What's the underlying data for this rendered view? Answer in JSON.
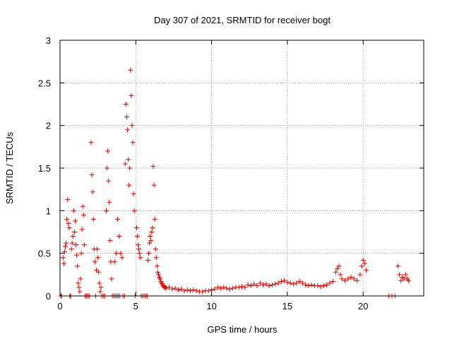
{
  "chart_data": {
    "type": "scatter",
    "title": "Day 307 of 2021, SRMTID for receiver bogt",
    "xlabel": "GPS time / hours",
    "ylabel": "SRMTID / TECUs",
    "xlim": [
      0,
      24
    ],
    "ylim": [
      0,
      3
    ],
    "x_ticks": [
      0,
      5,
      10,
      15,
      20
    ],
    "x_tick_labels": [
      "0",
      "5",
      "10",
      "15",
      "20"
    ],
    "y_ticks": [
      0,
      0.5,
      1,
      1.5,
      2,
      2.5,
      3
    ],
    "y_tick_labels": [
      "0",
      "0.5",
      "1",
      "1.5",
      "2",
      "2.5",
      "3"
    ],
    "grid": true,
    "legend": "none",
    "marker": "+",
    "colors": {
      "series": "#e00000",
      "axis": "#000000",
      "grid": "#a0a0a0"
    },
    "series": [
      {
        "name": "SRMTID",
        "points": [
          [
            0.05,
            0.0
          ],
          [
            0.1,
            0.0
          ],
          [
            0.2,
            0.45
          ],
          [
            0.25,
            0.38
          ],
          [
            0.3,
            0.52
          ],
          [
            0.35,
            0.58
          ],
          [
            0.4,
            0.62
          ],
          [
            0.45,
            0.9
          ],
          [
            0.5,
            1.13
          ],
          [
            0.55,
            0.85
          ],
          [
            0.6,
            0.8
          ],
          [
            0.65,
            0.0
          ],
          [
            0.7,
            0.0
          ],
          [
            0.75,
            0.55
          ],
          [
            0.8,
            0.62
          ],
          [
            0.85,
            0.7
          ],
          [
            0.9,
            1.0
          ],
          [
            0.95,
            0.75
          ],
          [
            1.0,
            0.88
          ],
          [
            1.05,
            0.6
          ],
          [
            1.1,
            0.48
          ],
          [
            1.15,
            0.35
          ],
          [
            1.2,
            0.15
          ],
          [
            1.25,
            0.1
          ],
          [
            1.3,
            0.05
          ],
          [
            1.35,
            0.2
          ],
          [
            1.4,
            0.5
          ],
          [
            1.45,
            0.78
          ],
          [
            1.5,
            1.05
          ],
          [
            1.55,
            0.95
          ],
          [
            1.6,
            0.6
          ],
          [
            1.65,
            0.0
          ],
          [
            1.75,
            0.0
          ],
          [
            1.85,
            0.0
          ],
          [
            1.95,
            0.0
          ],
          [
            2.05,
            1.8
          ],
          [
            2.1,
            1.42
          ],
          [
            2.15,
            1.22
          ],
          [
            2.2,
            0.9
          ],
          [
            2.25,
            0.55
          ],
          [
            2.3,
            0.4
          ],
          [
            2.35,
            0.0
          ],
          [
            2.4,
            0.3
          ],
          [
            2.45,
            0.55
          ],
          [
            2.5,
            0.45
          ],
          [
            2.55,
            0.28
          ],
          [
            2.6,
            0.15
          ],
          [
            2.65,
            0.05
          ],
          [
            2.7,
            0.1
          ],
          [
            2.75,
            0.0
          ],
          [
            2.85,
            0.0
          ],
          [
            2.95,
            0.0
          ],
          [
            3.05,
            1.0
          ],
          [
            3.1,
            1.5
          ],
          [
            3.15,
            1.7
          ],
          [
            3.2,
            1.35
          ],
          [
            3.25,
            1.1
          ],
          [
            3.3,
            0.65
          ],
          [
            3.35,
            0.4
          ],
          [
            3.4,
            0.2
          ],
          [
            3.45,
            0.0
          ],
          [
            3.55,
            0.0
          ],
          [
            3.65,
            0.0
          ],
          [
            3.75,
            0.0
          ],
          [
            3.85,
            0.0
          ],
          [
            3.95,
            0.0
          ],
          [
            3.6,
            0.4
          ],
          [
            3.7,
            0.5
          ],
          [
            3.8,
            0.9
          ],
          [
            3.9,
            0.7
          ],
          [
            4.0,
            0.5
          ],
          [
            4.1,
            0.45
          ],
          [
            4.15,
            0.0
          ],
          [
            4.25,
            0.0
          ],
          [
            4.3,
            1.55
          ],
          [
            4.35,
            2.25
          ],
          [
            4.4,
            2.1
          ],
          [
            4.45,
            1.95
          ],
          [
            4.5,
            1.6
          ],
          [
            4.55,
            1.3
          ],
          [
            4.6,
            1.5
          ],
          [
            4.65,
            2.65
          ],
          [
            4.7,
            2.35
          ],
          [
            4.75,
            2.0
          ],
          [
            4.8,
            1.8
          ],
          [
            4.85,
            1.2
          ],
          [
            4.9,
            1.0
          ],
          [
            4.95,
            0.0
          ],
          [
            5.05,
            0.8
          ],
          [
            5.1,
            0.7
          ],
          [
            5.15,
            0.6
          ],
          [
            5.2,
            0.55
          ],
          [
            5.25,
            0.5
          ],
          [
            5.3,
            0.45
          ],
          [
            5.35,
            0.0
          ],
          [
            5.45,
            0.0
          ],
          [
            5.55,
            0.0
          ],
          [
            5.65,
            0.0
          ],
          [
            5.75,
            0.0
          ],
          [
            5.8,
            0.42
          ],
          [
            5.85,
            0.5
          ],
          [
            5.9,
            0.62
          ],
          [
            5.95,
            0.7
          ],
          [
            6.0,
            0.65
          ],
          [
            6.05,
            0.75
          ],
          [
            6.1,
            0.8
          ],
          [
            6.15,
            1.52
          ],
          [
            6.2,
            1.3
          ],
          [
            6.25,
            0.9
          ],
          [
            6.3,
            0.55
          ],
          [
            6.35,
            0.45
          ],
          [
            6.4,
            0.35
          ],
          [
            6.45,
            0.28
          ],
          [
            6.5,
            0.25
          ],
          [
            6.55,
            0.22
          ],
          [
            6.6,
            0.2
          ],
          [
            6.65,
            0.17
          ],
          [
            6.7,
            0.15
          ],
          [
            6.75,
            0.14
          ],
          [
            6.8,
            0.12
          ],
          [
            6.85,
            0.1
          ],
          [
            6.9,
            0.11
          ],
          [
            6.95,
            0.1
          ],
          [
            7.0,
            0.09
          ],
          [
            7.2,
            0.1
          ],
          [
            7.4,
            0.08
          ],
          [
            7.6,
            0.09
          ],
          [
            7.8,
            0.07
          ],
          [
            8.0,
            0.08
          ],
          [
            8.2,
            0.06
          ],
          [
            8.4,
            0.07
          ],
          [
            8.6,
            0.06
          ],
          [
            8.8,
            0.07
          ],
          [
            9.0,
            0.06
          ],
          [
            9.2,
            0.05
          ],
          [
            9.4,
            0.05
          ],
          [
            9.6,
            0.06
          ],
          [
            9.8,
            0.06
          ],
          [
            10.0,
            0.07
          ],
          [
            10.2,
            0.08
          ],
          [
            10.4,
            0.1
          ],
          [
            10.6,
            0.09
          ],
          [
            10.8,
            0.1
          ],
          [
            11.0,
            0.09
          ],
          [
            11.2,
            0.08
          ],
          [
            11.4,
            0.09
          ],
          [
            11.6,
            0.1
          ],
          [
            11.8,
            0.1
          ],
          [
            12.0,
            0.11
          ],
          [
            12.2,
            0.1
          ],
          [
            12.4,
            0.13
          ],
          [
            12.6,
            0.12
          ],
          [
            12.8,
            0.14
          ],
          [
            13.0,
            0.12
          ],
          [
            13.2,
            0.15
          ],
          [
            13.4,
            0.13
          ],
          [
            13.6,
            0.14
          ],
          [
            13.8,
            0.12
          ],
          [
            14.0,
            0.13
          ],
          [
            14.2,
            0.14
          ],
          [
            14.4,
            0.15
          ],
          [
            14.6,
            0.17
          ],
          [
            14.8,
            0.18
          ],
          [
            15.0,
            0.16
          ],
          [
            15.2,
            0.15
          ],
          [
            15.4,
            0.14
          ],
          [
            15.6,
            0.15
          ],
          [
            15.8,
            0.17
          ],
          [
            16.0,
            0.15
          ],
          [
            16.2,
            0.13
          ],
          [
            16.4,
            0.12
          ],
          [
            16.6,
            0.13
          ],
          [
            16.8,
            0.12
          ],
          [
            17.0,
            0.12
          ],
          [
            17.2,
            0.11
          ],
          [
            17.4,
            0.12
          ],
          [
            17.6,
            0.13
          ],
          [
            17.8,
            0.15
          ],
          [
            18.0,
            0.17
          ],
          [
            18.2,
            0.28
          ],
          [
            18.3,
            0.32
          ],
          [
            18.4,
            0.35
          ],
          [
            18.5,
            0.25
          ],
          [
            18.6,
            0.2
          ],
          [
            18.8,
            0.18
          ],
          [
            19.0,
            0.2
          ],
          [
            19.2,
            0.22
          ],
          [
            19.4,
            0.2
          ],
          [
            19.6,
            0.18
          ],
          [
            19.8,
            0.25
          ],
          [
            19.9,
            0.35
          ],
          [
            20.0,
            0.42
          ],
          [
            20.1,
            0.38
          ],
          [
            20.2,
            0.3
          ],
          [
            21.7,
            0.0
          ],
          [
            21.9,
            0.0
          ],
          [
            22.1,
            0.0
          ],
          [
            22.3,
            0.35
          ],
          [
            22.4,
            0.25
          ],
          [
            22.5,
            0.18
          ],
          [
            22.6,
            0.22
          ],
          [
            22.7,
            0.2
          ],
          [
            22.8,
            0.25
          ],
          [
            22.9,
            0.2
          ],
          [
            23.0,
            0.18
          ]
        ]
      }
    ]
  }
}
